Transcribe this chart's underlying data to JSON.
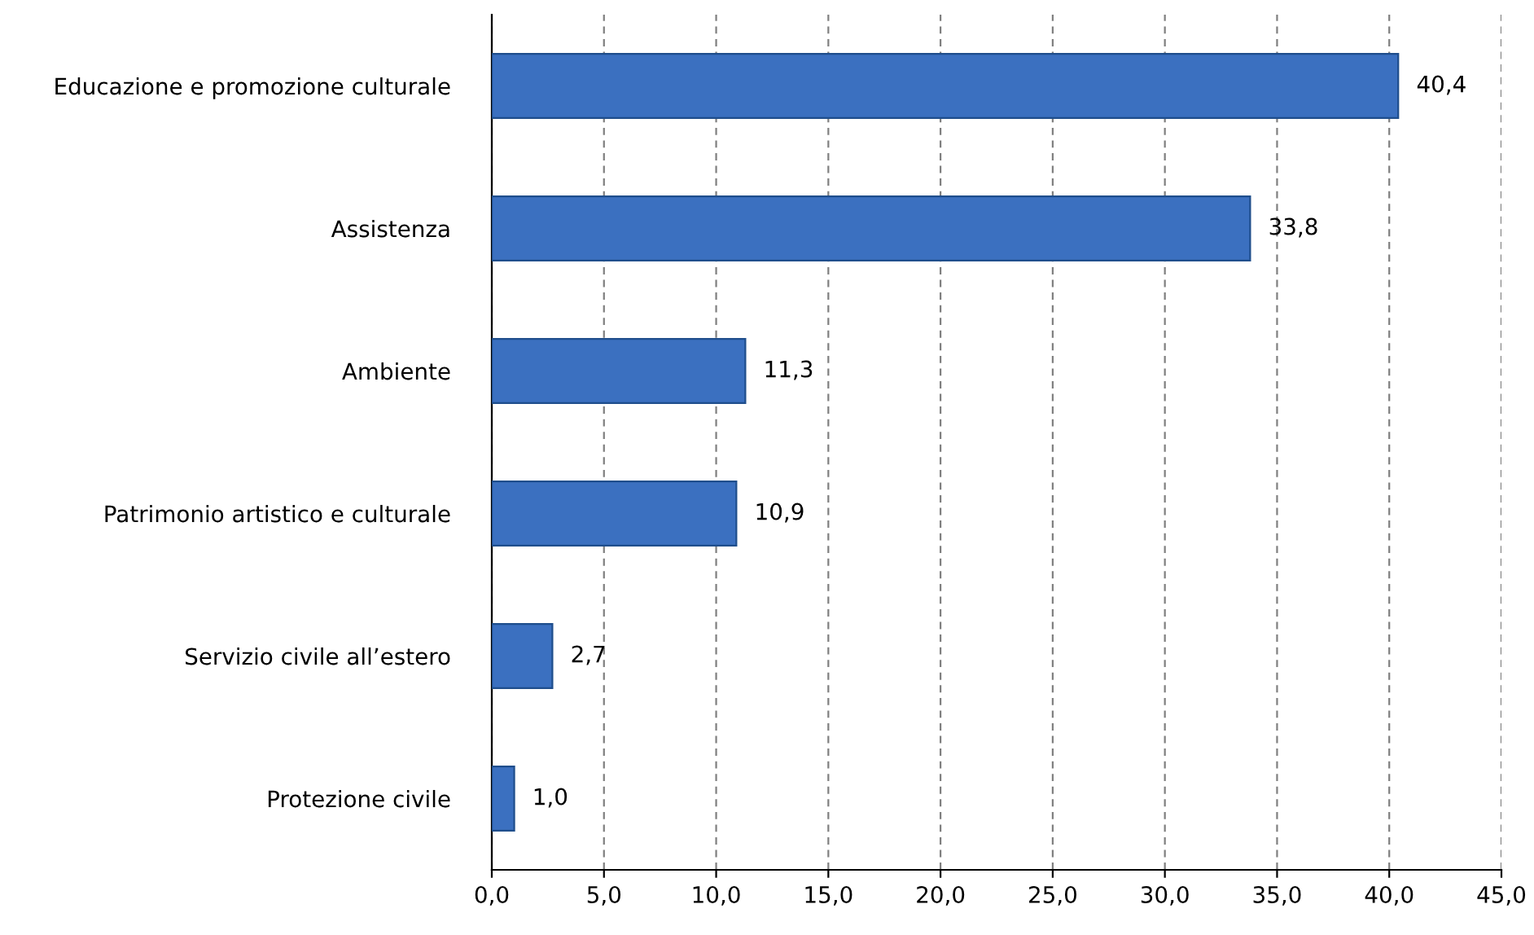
{
  "chart_data": {
    "type": "bar",
    "orientation": "horizontal",
    "categories": [
      "Educazione e promozione culturale",
      "Assistenza",
      "Ambiente",
      "Patrimonio artistico e culturale",
      "Servizio civile all’estero",
      "Protezione civile"
    ],
    "values": [
      40.4,
      33.8,
      11.3,
      10.9,
      2.7,
      1.0
    ],
    "value_labels": [
      "40,4",
      "33,8",
      "11,3",
      "10,9",
      "2,7",
      "1,0"
    ],
    "color": "#3b70c0",
    "xlim": [
      0,
      45
    ],
    "xticks": [
      {
        "value": 0,
        "label": "0,0"
      },
      {
        "value": 5,
        "label": "5,0"
      },
      {
        "value": 10,
        "label": "10,0"
      },
      {
        "value": 15,
        "label": "15,0"
      },
      {
        "value": 20,
        "label": "20,0"
      },
      {
        "value": 25,
        "label": "25,0"
      },
      {
        "value": 30,
        "label": "30,0"
      },
      {
        "value": 35,
        "label": "35,0"
      },
      {
        "value": 40,
        "label": "40,0"
      },
      {
        "value": 45,
        "label": "45,0"
      }
    ],
    "grid": "x"
  }
}
